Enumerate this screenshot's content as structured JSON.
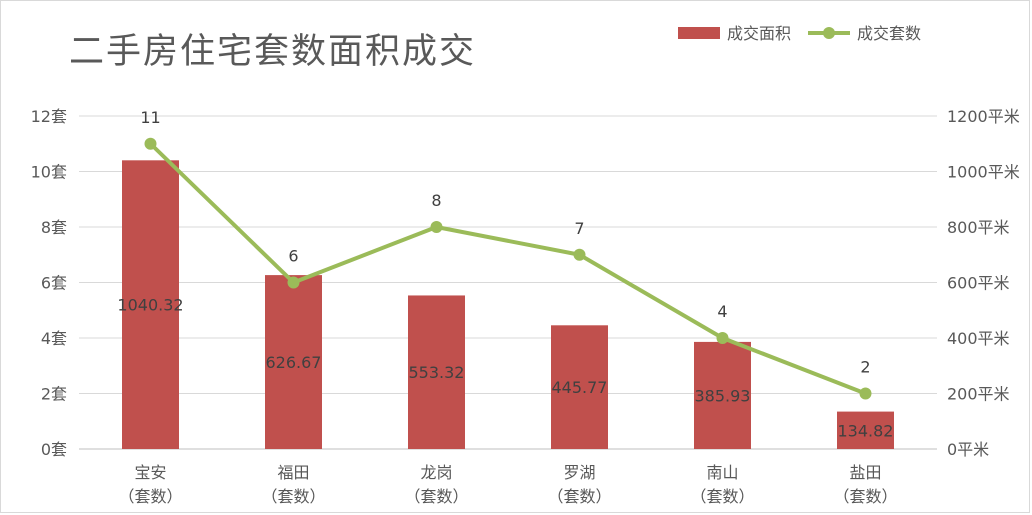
{
  "chart_data": {
    "type": "bar",
    "title": "二手房住宅套数面积成交",
    "categories": [
      "宝安\n（套数）",
      "福田\n（套数）",
      "龙岗\n（套数）",
      "罗湖\n（套数）",
      "南山\n（套数）",
      "盐田\n（套数）"
    ],
    "series": [
      {
        "name": "成交面积",
        "type": "bar",
        "axis": "right",
        "values": [
          1040.32,
          626.67,
          553.32,
          445.77,
          385.93,
          134.82
        ],
        "color": "#c0504d"
      },
      {
        "name": "成交套数",
        "type": "line",
        "axis": "left",
        "values": [
          11,
          6,
          8,
          7,
          4,
          2
        ],
        "color": "#9bbb59"
      }
    ],
    "y_left": {
      "range": [
        0,
        12
      ],
      "ticks": [
        "0套",
        "2套",
        "4套",
        "6套",
        "8套",
        "10套",
        "12套"
      ]
    },
    "y_right": {
      "range": [
        0,
        1200
      ],
      "ticks": [
        "0平米",
        "200平米",
        "400平米",
        "600平米",
        "800平米",
        "1000平米",
        "1200平米"
      ]
    },
    "grid": true,
    "legend": "top-right"
  }
}
